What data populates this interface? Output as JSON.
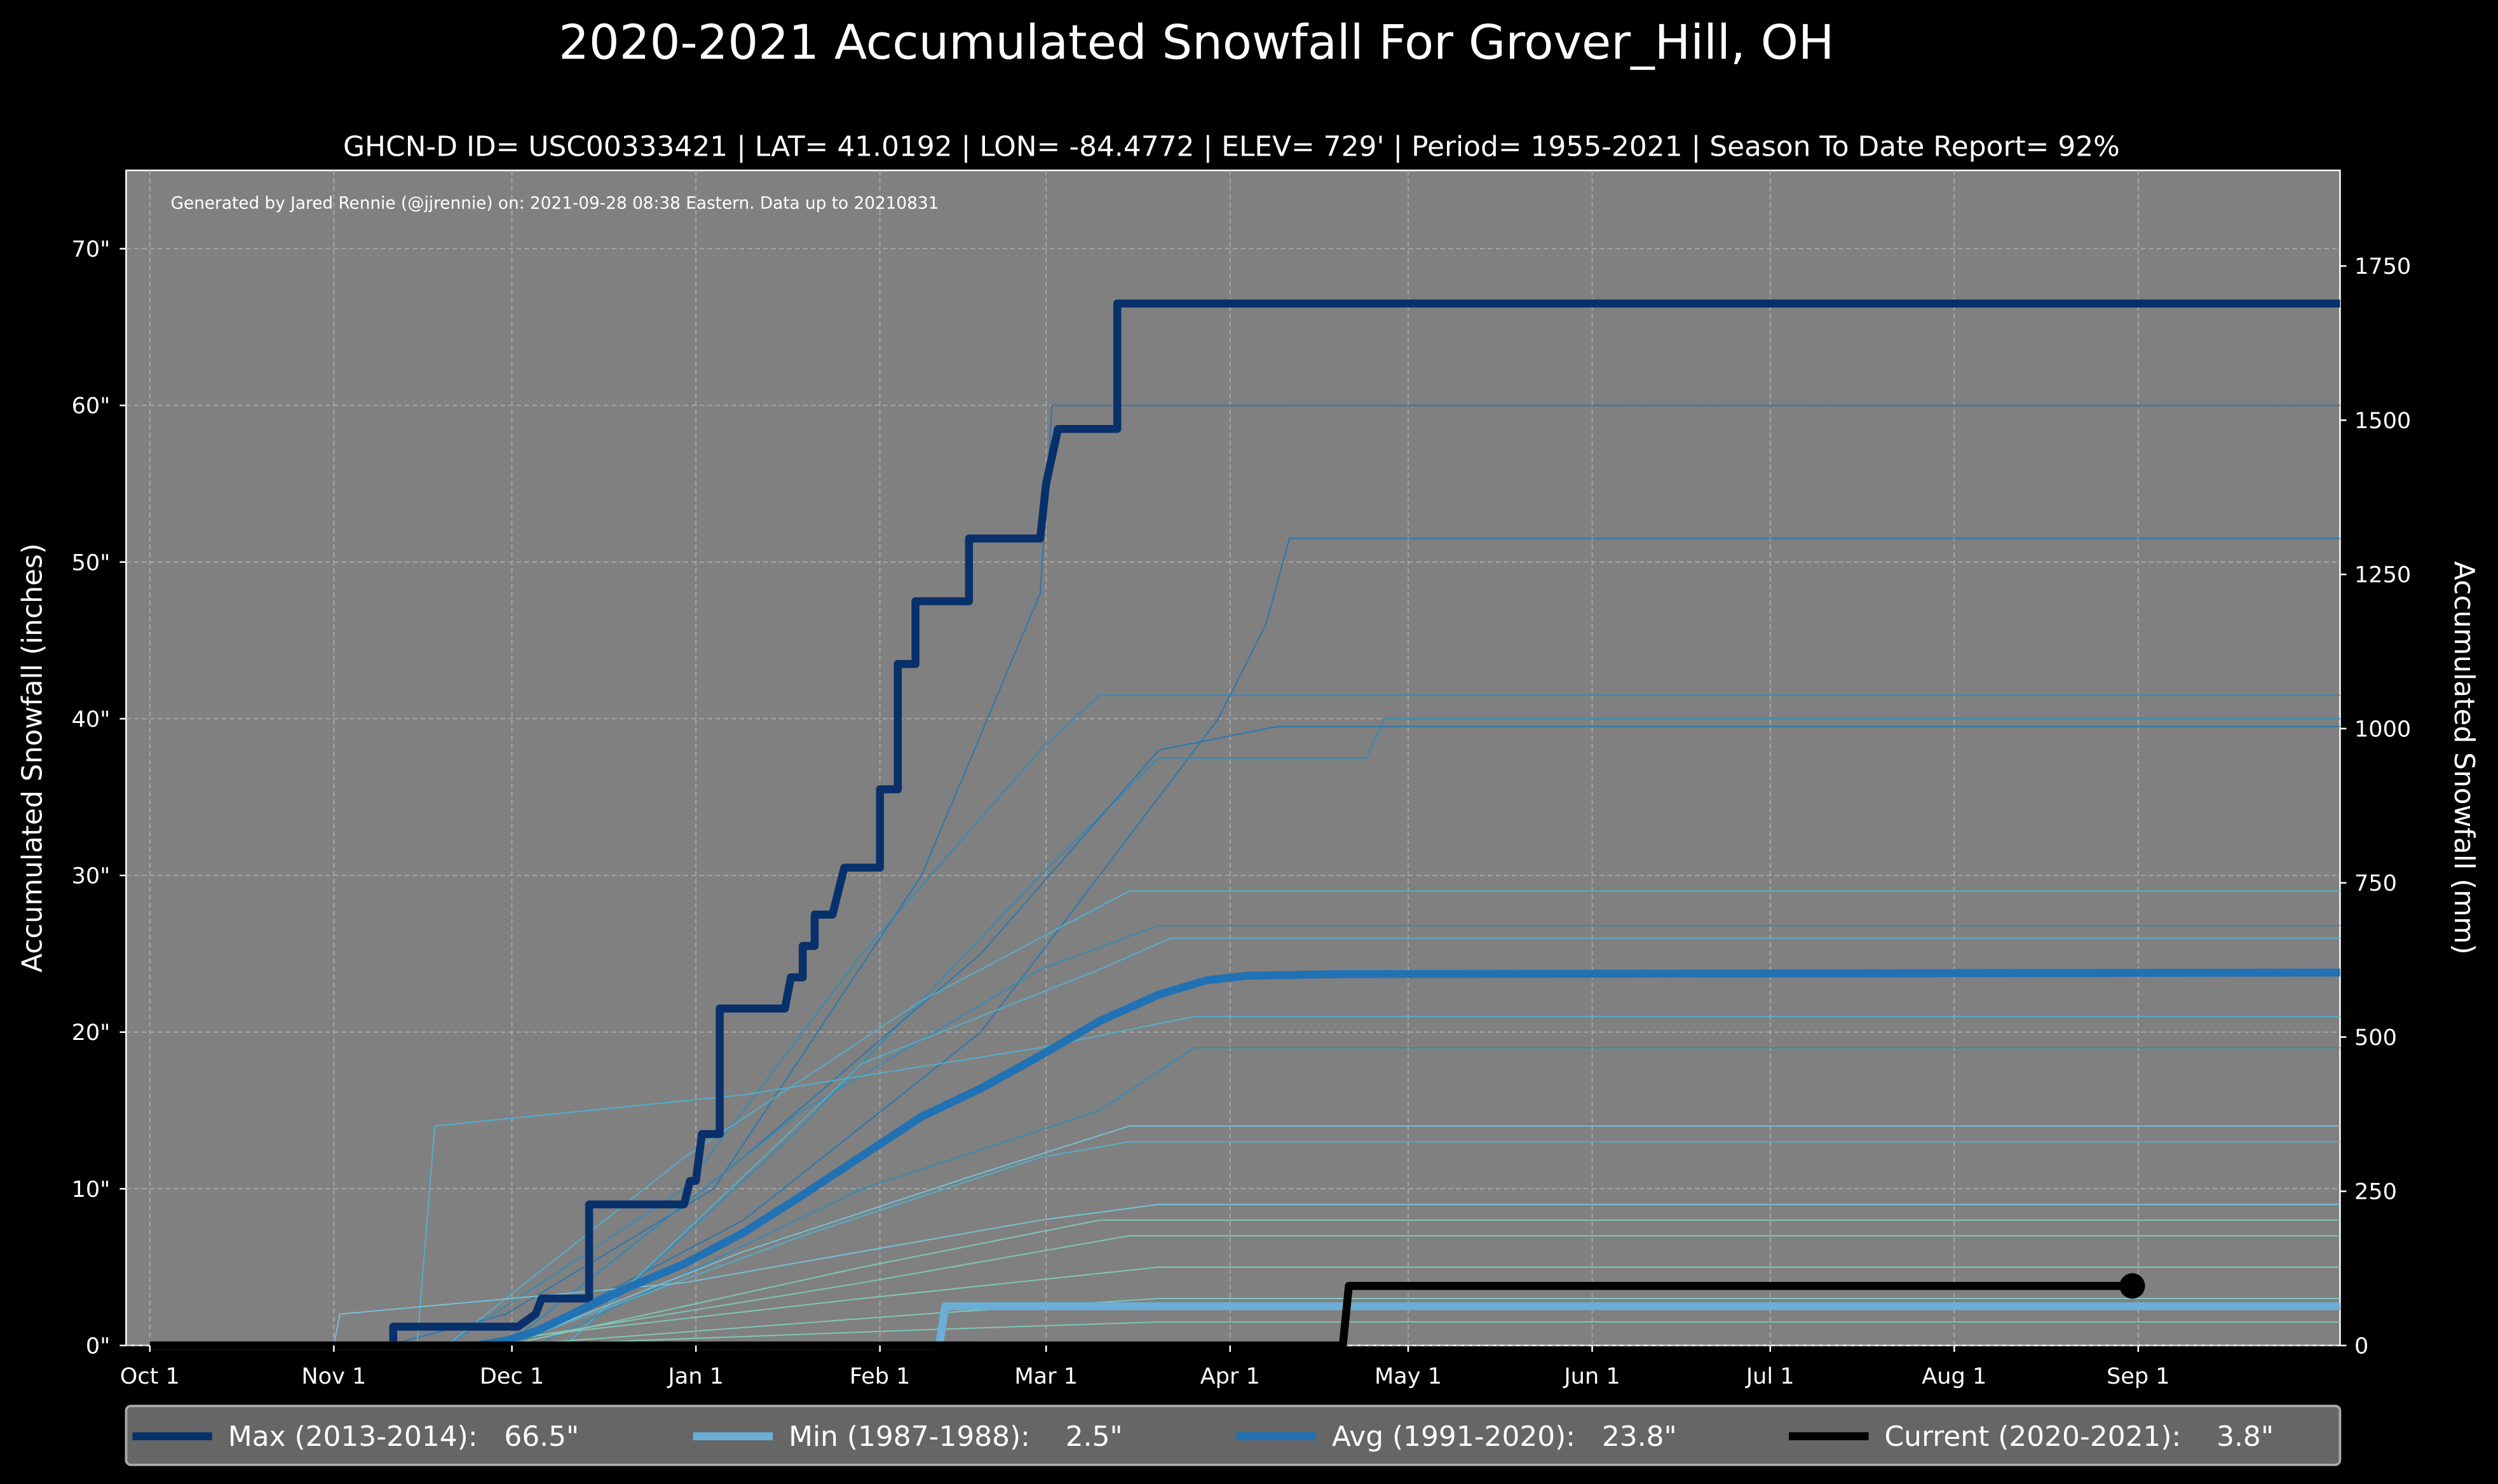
{
  "chart_data": {
    "type": "line",
    "title": "2020-2021 Accumulated Snowfall For Grover_Hill, OH",
    "subtitle": "GHCN-D ID= USC00333421 | LAT= 41.0192 | LON= -84.4772 | ELEV= 729' | Period= 1955-2021 | Season To Date Report= 92%",
    "annotation": "Generated by Jared Rennie (@jjrennie) on: 2021-09-28 08:38 Eastern. Data up to 20210831",
    "ylabel": "Accumulated Snowfall (inches)",
    "ylabel_right": "Accumulated Snowfall (mm)",
    "x_unit": "days since Oct 1",
    "xlim": [
      -4,
      369
    ],
    "ylim": [
      0,
      75
    ],
    "ylim_right_mm": [
      0,
      1905
    ],
    "grid": true,
    "x_ticks": [
      {
        "day": 0,
        "label": "Oct 1"
      },
      {
        "day": 31,
        "label": "Nov 1"
      },
      {
        "day": 61,
        "label": "Dec 1"
      },
      {
        "day": 92,
        "label": "Jan 1"
      },
      {
        "day": 123,
        "label": "Feb 1"
      },
      {
        "day": 151,
        "label": "Mar 1"
      },
      {
        "day": 182,
        "label": "Apr 1"
      },
      {
        "day": 212,
        "label": "May 1"
      },
      {
        "day": 243,
        "label": "Jun 1"
      },
      {
        "day": 273,
        "label": "Jul 1"
      },
      {
        "day": 304,
        "label": "Aug 1"
      },
      {
        "day": 335,
        "label": "Sep 1"
      }
    ],
    "y_ticks": [
      {
        "value": 0,
        "label": "0\""
      },
      {
        "value": 10,
        "label": "10\""
      },
      {
        "value": 20,
        "label": "20\""
      },
      {
        "value": 30,
        "label": "30\""
      },
      {
        "value": 40,
        "label": "40\""
      },
      {
        "value": 50,
        "label": "50\""
      },
      {
        "value": 60,
        "label": "60\""
      },
      {
        "value": 70,
        "label": "70\""
      }
    ],
    "y_ticks_right": [
      {
        "value": 0,
        "label": "0"
      },
      {
        "value": 250,
        "label": "250"
      },
      {
        "value": 500,
        "label": "500"
      },
      {
        "value": 750,
        "label": "750"
      },
      {
        "value": 1000,
        "label": "1000"
      },
      {
        "value": 1250,
        "label": "1250"
      },
      {
        "value": 1500,
        "label": "1500"
      },
      {
        "value": 1750,
        "label": "1750"
      }
    ],
    "background_seasons": [
      {
        "color": "#1f77b4",
        "points": [
          [
            0,
            0
          ],
          [
            40,
            0
          ],
          [
            60,
            2
          ],
          [
            95,
            10
          ],
          [
            130,
            30
          ],
          [
            150,
            48
          ],
          [
            152,
            60
          ],
          [
            369,
            60
          ]
        ]
      },
      {
        "color": "#1f77b4",
        "points": [
          [
            0,
            0
          ],
          [
            60,
            0
          ],
          [
            100,
            8
          ],
          [
            140,
            20
          ],
          [
            180,
            40
          ],
          [
            188,
            46
          ],
          [
            192,
            51.5
          ],
          [
            369,
            51.5
          ]
        ]
      },
      {
        "color": "#2b8cbe",
        "points": [
          [
            0,
            0
          ],
          [
            50,
            0
          ],
          [
            90,
            10
          ],
          [
            120,
            25
          ],
          [
            150,
            38
          ],
          [
            160,
            41.5
          ],
          [
            369,
            41.5
          ]
        ]
      },
      {
        "color": "#2b8cbe",
        "points": [
          [
            0,
            0
          ],
          [
            70,
            0
          ],
          [
            110,
            14
          ],
          [
            150,
            30
          ],
          [
            170,
            37.5
          ],
          [
            205,
            37.5
          ],
          [
            208,
            40
          ],
          [
            369,
            40
          ]
        ]
      },
      {
        "color": "#1f77b4",
        "points": [
          [
            0,
            0
          ],
          [
            60,
            0
          ],
          [
            100,
            12
          ],
          [
            140,
            25
          ],
          [
            170,
            38
          ],
          [
            190,
            39.5
          ],
          [
            369,
            39.5
          ]
        ]
      },
      {
        "color": "#4eb3d3",
        "points": [
          [
            0,
            0
          ],
          [
            50,
            0
          ],
          [
            90,
            12
          ],
          [
            130,
            22
          ],
          [
            165,
            29
          ],
          [
            369,
            29
          ]
        ]
      },
      {
        "color": "#2b8cbe",
        "points": [
          [
            0,
            0
          ],
          [
            60,
            0
          ],
          [
            110,
            15
          ],
          [
            150,
            24
          ],
          [
            170,
            26.8
          ],
          [
            369,
            26.8
          ]
        ]
      },
      {
        "color": "#4eb3d3",
        "points": [
          [
            0,
            0
          ],
          [
            70,
            0
          ],
          [
            120,
            18
          ],
          [
            160,
            24
          ],
          [
            172,
            26
          ],
          [
            369,
            26
          ]
        ]
      },
      {
        "color": "#4eb3d3",
        "points": [
          [
            0,
            0
          ],
          [
            45,
            0
          ],
          [
            48,
            14
          ],
          [
            100,
            16
          ],
          [
            150,
            19
          ],
          [
            176,
            21
          ],
          [
            369,
            21
          ]
        ]
      },
      {
        "color": "#2b8cbe",
        "points": [
          [
            0,
            0
          ],
          [
            65,
            0
          ],
          [
            120,
            10
          ],
          [
            160,
            15
          ],
          [
            176,
            19
          ],
          [
            369,
            19
          ]
        ]
      },
      {
        "color": "#74c6e0",
        "points": [
          [
            0,
            0
          ],
          [
            60,
            0
          ],
          [
            100,
            6
          ],
          [
            140,
            11
          ],
          [
            165,
            14
          ],
          [
            369,
            14
          ]
        ]
      },
      {
        "color": "#4eb3d3",
        "points": [
          [
            0,
            0
          ],
          [
            60,
            0
          ],
          [
            110,
            7
          ],
          [
            150,
            12
          ],
          [
            165,
            13
          ],
          [
            369,
            13
          ]
        ]
      },
      {
        "color": "#74c6e0",
        "points": [
          [
            0,
            0
          ],
          [
            31,
            0
          ],
          [
            32,
            2
          ],
          [
            90,
            4
          ],
          [
            150,
            8
          ],
          [
            170,
            9
          ],
          [
            369,
            9
          ]
        ]
      },
      {
        "color": "#7fcdbb",
        "points": [
          [
            0,
            0
          ],
          [
            60,
            0
          ],
          [
            120,
            5
          ],
          [
            160,
            8
          ],
          [
            369,
            8
          ]
        ]
      },
      {
        "color": "#7fcdbb",
        "points": [
          [
            0,
            0
          ],
          [
            55,
            0
          ],
          [
            120,
            4
          ],
          [
            165,
            7
          ],
          [
            369,
            7
          ]
        ]
      },
      {
        "color": "#7fcdbb",
        "points": [
          [
            0,
            0
          ],
          [
            50,
            0
          ],
          [
            120,
            3
          ],
          [
            170,
            5
          ],
          [
            369,
            5
          ]
        ]
      },
      {
        "color": "#7fcdbb",
        "points": [
          [
            0,
            0
          ],
          [
            60,
            0
          ],
          [
            130,
            2
          ],
          [
            170,
            3
          ],
          [
            369,
            3
          ]
        ]
      },
      {
        "color": "#7fcdbb",
        "points": [
          [
            0,
            0
          ],
          [
            60,
            0
          ],
          [
            130,
            1
          ],
          [
            170,
            1.5
          ],
          [
            369,
            1.5
          ]
        ]
      }
    ],
    "series": [
      {
        "name": "Max (2013-2014)",
        "legend": "Max (2013-2014):   66.5\"",
        "color": "#08306b",
        "width": 5,
        "points": [
          [
            0,
            0
          ],
          [
            41,
            0
          ],
          [
            41,
            1.2
          ],
          [
            62,
            1.2
          ],
          [
            65,
            2
          ],
          [
            66,
            3
          ],
          [
            74,
            3
          ],
          [
            74,
            9
          ],
          [
            90,
            9
          ],
          [
            91,
            10.5
          ],
          [
            92,
            10.5
          ],
          [
            93,
            13.5
          ],
          [
            96,
            13.5
          ],
          [
            96,
            21.5
          ],
          [
            107,
            21.5
          ],
          [
            108,
            23.5
          ],
          [
            110,
            23.5
          ],
          [
            110,
            25.5
          ],
          [
            112,
            25.5
          ],
          [
            112,
            27.5
          ],
          [
            115,
            27.5
          ],
          [
            116,
            29
          ],
          [
            117,
            30.5
          ],
          [
            123,
            30.5
          ],
          [
            123,
            35.5
          ],
          [
            126,
            35.5
          ],
          [
            126,
            43.5
          ],
          [
            129,
            43.5
          ],
          [
            129,
            47.5
          ],
          [
            138,
            47.5
          ],
          [
            138,
            51.5
          ],
          [
            150,
            51.5
          ],
          [
            151,
            55
          ],
          [
            153,
            58.5
          ],
          [
            163,
            58.5
          ],
          [
            163,
            66.5
          ],
          [
            369,
            66.5
          ]
        ]
      },
      {
        "name": "Min (1987-1988)",
        "legend": "Min (1987-1988):    2.5\"",
        "color": "#6baed6",
        "width": 5,
        "points": [
          [
            0,
            0
          ],
          [
            133,
            0
          ],
          [
            134,
            2.5
          ],
          [
            369,
            2.5
          ]
        ]
      },
      {
        "name": "Avg (1991-2020)",
        "legend": "Avg (1991-2020):   23.8\"",
        "color": "#2171b5",
        "width": 5,
        "points": [
          [
            0,
            0
          ],
          [
            55,
            0
          ],
          [
            60,
            0.3
          ],
          [
            65,
            0.9
          ],
          [
            70,
            1.8
          ],
          [
            80,
            3.6
          ],
          [
            90,
            5.2
          ],
          [
            100,
            7.2
          ],
          [
            110,
            9.6
          ],
          [
            120,
            12.1
          ],
          [
            130,
            14.6
          ],
          [
            140,
            16.4
          ],
          [
            150,
            18.5
          ],
          [
            160,
            20.7
          ],
          [
            170,
            22.4
          ],
          [
            178,
            23.3
          ],
          [
            185,
            23.6
          ],
          [
            200,
            23.7
          ],
          [
            369,
            23.8
          ]
        ]
      },
      {
        "name": "Current (2020-2021)",
        "legend": "Current (2020-2021):    3.8\"",
        "color": "#000000",
        "width": 5,
        "points": [
          [
            0,
            0
          ],
          [
            201,
            0
          ],
          [
            202,
            3.8
          ],
          [
            334,
            3.8
          ]
        ],
        "end_marker": true
      }
    ],
    "legend_position": "bottom"
  }
}
